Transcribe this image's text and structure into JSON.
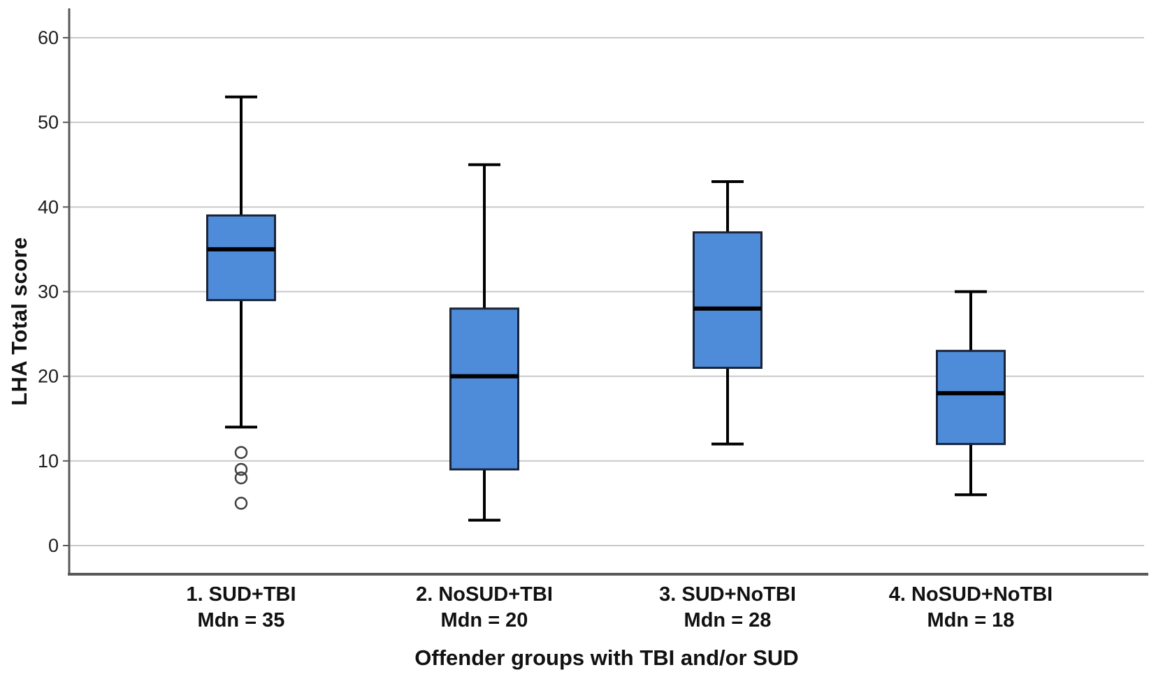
{
  "chart_data": {
    "type": "boxplot",
    "title": "",
    "xlabel": "Offender groups with TBI and/or SUD",
    "ylabel": "LHA Total score",
    "yticks": [
      0,
      10,
      20,
      30,
      40,
      50,
      60
    ],
    "ylim": [
      -3.4,
      63.5
    ],
    "grid": "horizontal",
    "legend": null,
    "groups": [
      {
        "label_line1": "1. SUD+TBI",
        "label_line2": "Mdn = 35",
        "min": 14,
        "q1": 29,
        "median": 35,
        "q3": 39,
        "max": 53,
        "outliers": [
          11,
          9,
          8,
          5
        ]
      },
      {
        "label_line1": "2. NoSUD+TBI",
        "label_line2": "Mdn = 20",
        "min": 3,
        "q1": 9,
        "median": 20,
        "q3": 28,
        "max": 45,
        "outliers": []
      },
      {
        "label_line1": "3. SUD+NoTBI",
        "label_line2": "Mdn = 28",
        "min": 12,
        "q1": 21,
        "median": 28,
        "q3": 37,
        "max": 43,
        "outliers": []
      },
      {
        "label_line1": "4. NoSUD+NoTBI",
        "label_line2": "Mdn = 18",
        "min": 6,
        "q1": 12,
        "median": 18,
        "q3": 23,
        "max": 30,
        "outliers": []
      }
    ],
    "colors": {
      "box_fill": "#4E8CD9",
      "box_border": "#1a2438",
      "median": "#000000",
      "whisker": "#000000",
      "gridline": "#c9c9c9",
      "axis": "#595959",
      "outlier_stroke": "#404040",
      "text": "#1c1c1c"
    }
  }
}
